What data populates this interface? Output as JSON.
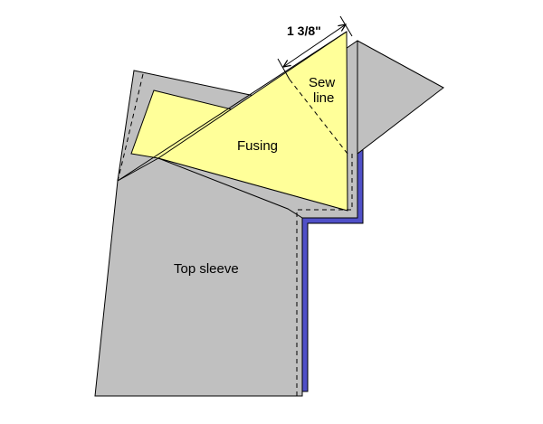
{
  "diagram": {
    "labels": {
      "dimension": "1 3/8\"",
      "sew_line_top": "Sew",
      "sew_line_bottom": "line",
      "fusing": "Fusing",
      "top_sleeve": "Top sleeve"
    },
    "colors": {
      "fabric": "#c0c0c0",
      "fusing": "#ffff99",
      "underlay": "#5050c8",
      "outline": "#000000",
      "background": "#ffffff"
    }
  }
}
